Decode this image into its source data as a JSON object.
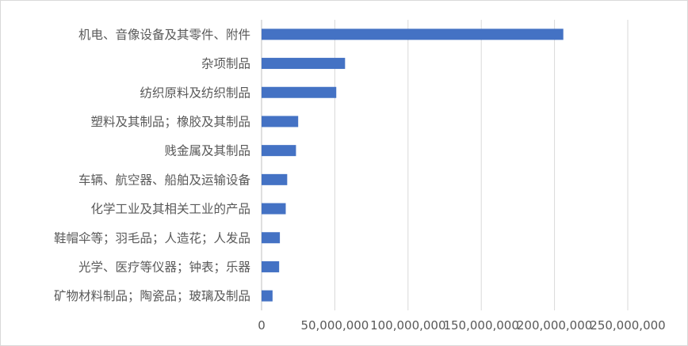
{
  "chart_data": {
    "type": "bar",
    "orientation": "horizontal",
    "categories": [
      "机电、音像设备及其零件、附件",
      "杂项制品",
      "纺织原料及纺织制品",
      "塑料及其制品；橡胶及其制品",
      "贱金属及其制品",
      "车辆、航空器、船舶及运输设备",
      "化学工业及其相关工业的产品",
      "鞋帽伞等；羽毛品；人造花；人发品",
      "光学、医疗等仪器；钟表；乐器",
      "矿物材料制品；陶瓷品；玻璃及制品"
    ],
    "values": [
      206000000,
      57000000,
      51000000,
      25000000,
      23500000,
      17500000,
      16500000,
      12500000,
      12000000,
      7500000
    ],
    "xlim": [
      0,
      250000000
    ],
    "x_ticks": [
      0,
      50000000,
      100000000,
      150000000,
      200000000,
      250000000
    ],
    "x_tick_labels": [
      "0",
      "50,000,000",
      "100,000,000",
      "150,000,000",
      "200,000,000",
      "250,000,000"
    ],
    "title": "",
    "xlabel": "",
    "ylabel": "",
    "grid": "vertical",
    "legend": "none",
    "bar_color": "#4472c4",
    "grid_color": "#d9d9d9"
  }
}
